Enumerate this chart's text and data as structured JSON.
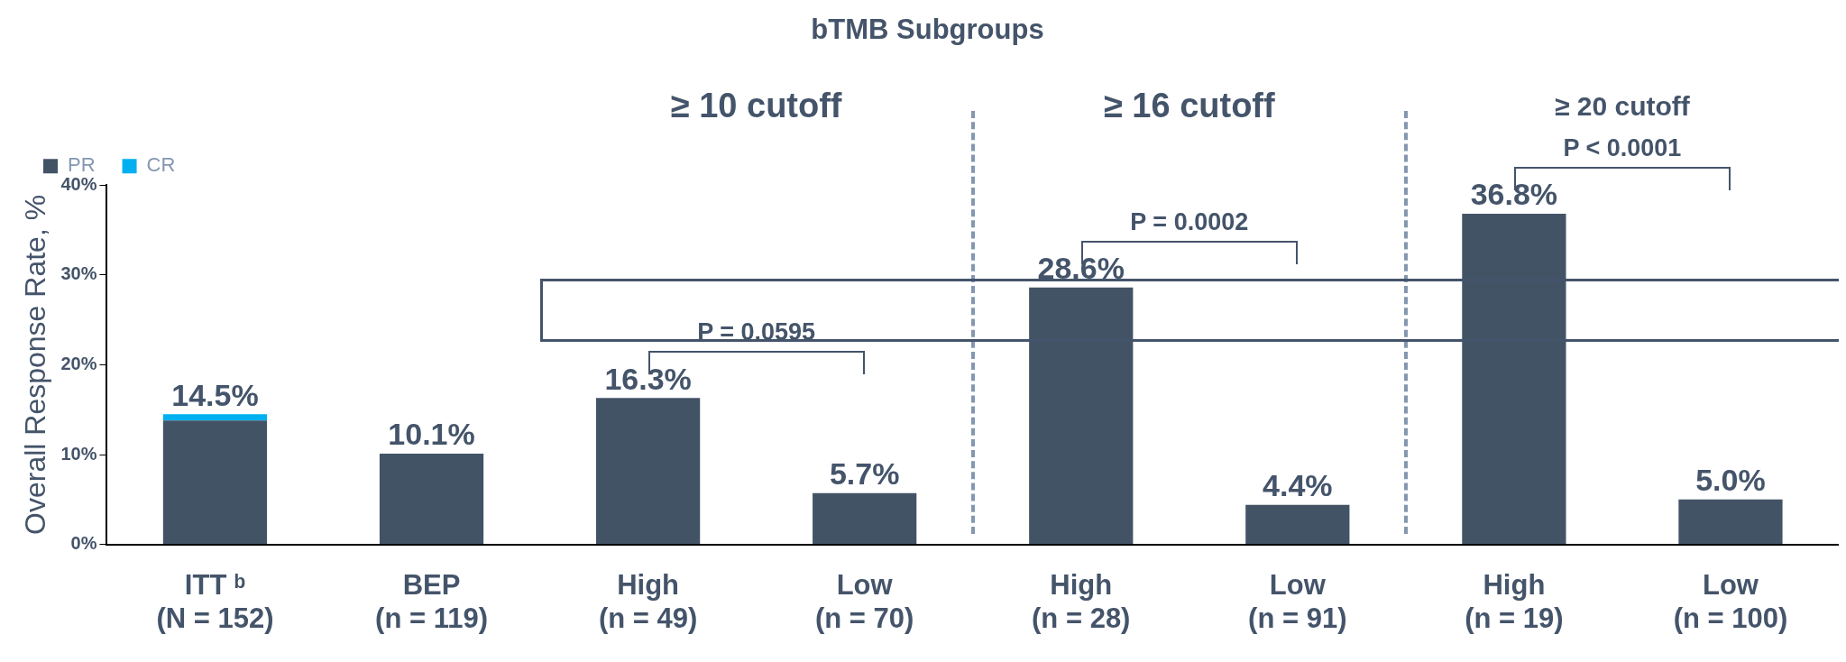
{
  "chart_data": {
    "type": "bar",
    "title": "bTMB Subgroups",
    "ylabel": "Overall Response Rate, %",
    "categories": [
      "ITT ᵇ\n(N = 152)",
      "BEP\n(n = 119)",
      "High\n(n = 49)",
      "Low\n(n = 70)",
      "High\n(n = 28)",
      "Low\n(n = 91)",
      "High\n(n = 19)",
      "Low\n(n = 100)"
    ],
    "series": [
      {
        "name": "PR",
        "color": "#435366",
        "values": [
          13.8,
          10.1,
          16.3,
          5.7,
          28.6,
          4.4,
          36.8,
          5.0
        ]
      },
      {
        "name": "CR",
        "color": "#00b0f0",
        "values": [
          0.7,
          null,
          null,
          null,
          null,
          null,
          null,
          null
        ]
      }
    ],
    "stacked": true,
    "totals": [
      "14.5%",
      "10.1%",
      "16.3%",
      "5.7%",
      "28.6%",
      "4.4%",
      "36.8%",
      "5.0%"
    ],
    "ylim": [
      0,
      40
    ],
    "yticks": [
      {
        "value": 0,
        "label": "0%"
      },
      {
        "value": 10,
        "label": "10%"
      },
      {
        "value": 20,
        "label": "20%"
      },
      {
        "value": 30,
        "label": "30%"
      },
      {
        "value": 40,
        "label": "40%"
      }
    ],
    "annotations": [
      "≥ 10 cutoff",
      "≥ 16 cutoff",
      "≥ 20 cutoff",
      "P = 0.0595",
      "P = 0.0002",
      "P < 0.0001"
    ],
    "grid": false,
    "legend": "top left"
  }
}
